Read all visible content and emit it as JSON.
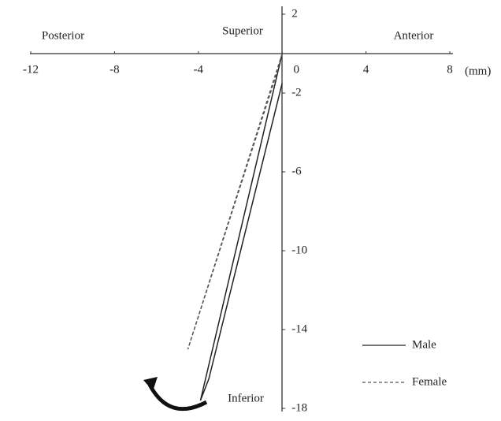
{
  "chart_data": {
    "type": "line",
    "annotations": [
      "Posterior",
      "Superior",
      "Anterior",
      "Inferior"
    ],
    "x_unit": "(mm)",
    "xlim": [
      -12,
      8
    ],
    "xticks": [
      -12,
      -8,
      -4,
      0,
      4,
      8
    ],
    "ylim": [
      -18,
      2
    ],
    "yticks": [
      2,
      -2,
      -6,
      -10,
      -14,
      -18
    ],
    "series": [
      {
        "name": "Male",
        "color": "#222222",
        "dash": false,
        "x": [
          0,
          -3.9,
          -3.5,
          0
        ],
        "values": [
          0,
          -17.6,
          -16.5,
          -1.5
        ]
      },
      {
        "name": "Female",
        "color": "#555555",
        "dash": true,
        "x": [
          0,
          -4.5,
          -4.2,
          -0.2
        ],
        "values": [
          0,
          -15,
          -14,
          -0.8
        ]
      }
    ]
  }
}
